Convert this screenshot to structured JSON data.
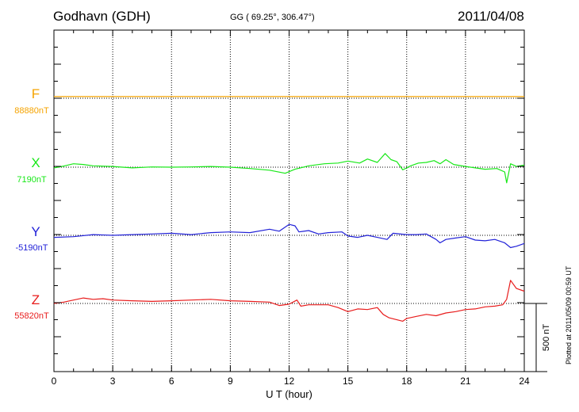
{
  "header": {
    "station": "Godhavn (GDH)",
    "coords": "GG ( 69.25°, 306.47°)",
    "date": "2011/04/08",
    "plotted": "Plotted at 2011/05/09 00:59 UT"
  },
  "chart_data": {
    "type": "line",
    "title": "Godhavn (GDH) 2011/04/08",
    "xlabel": "U T (hour)",
    "xlim": [
      0,
      24
    ],
    "xticks": [
      0,
      3,
      6,
      9,
      12,
      15,
      18,
      21,
      24
    ],
    "xtick_labels": [
      "0",
      "3",
      "6",
      "9",
      "12",
      "15",
      "18",
      "21",
      "24"
    ],
    "grid": true,
    "scale_bar": {
      "label": "500 nT",
      "value_nT": 500
    },
    "series": [
      {
        "name": "F",
        "baseline_label": "88880nT",
        "baseline_nT": 88880,
        "color": "#f5a300",
        "points": [
          [
            0,
            12
          ],
          [
            6,
            12
          ],
          [
            12,
            12
          ],
          [
            18,
            12
          ],
          [
            24,
            12
          ]
        ]
      },
      {
        "name": "X",
        "baseline_label": "7190nT",
        "baseline_nT": 7190,
        "color": "#18e818",
        "points": [
          [
            0,
            -5
          ],
          [
            0.5,
            8
          ],
          [
            1,
            25
          ],
          [
            1.5,
            20
          ],
          [
            2,
            10
          ],
          [
            3,
            5
          ],
          [
            4,
            -5
          ],
          [
            5,
            2
          ],
          [
            6,
            0
          ],
          [
            7,
            2
          ],
          [
            8,
            5
          ],
          [
            9,
            0
          ],
          [
            10,
            -10
          ],
          [
            11,
            -22
          ],
          [
            11.8,
            -45
          ],
          [
            12.3,
            -15
          ],
          [
            13,
            10
          ],
          [
            13.8,
            25
          ],
          [
            14.5,
            30
          ],
          [
            15,
            45
          ],
          [
            15.6,
            30
          ],
          [
            16,
            60
          ],
          [
            16.5,
            35
          ],
          [
            16.9,
            100
          ],
          [
            17.2,
            55
          ],
          [
            17.5,
            40
          ],
          [
            17.8,
            -20
          ],
          [
            18.2,
            10
          ],
          [
            18.6,
            30
          ],
          [
            19,
            35
          ],
          [
            19.4,
            48
          ],
          [
            19.7,
            25
          ],
          [
            20,
            55
          ],
          [
            20.4,
            20
          ],
          [
            21,
            5
          ],
          [
            21.5,
            -5
          ],
          [
            22,
            -15
          ],
          [
            22.6,
            -10
          ],
          [
            23.0,
            -35
          ],
          [
            23.1,
            -115
          ],
          [
            23.3,
            25
          ],
          [
            23.6,
            5
          ],
          [
            24,
            15
          ]
        ]
      },
      {
        "name": "Y",
        "baseline_label": "-5190nT",
        "baseline_nT": -5190,
        "color": "#2222d8",
        "points": [
          [
            0,
            -15
          ],
          [
            1,
            -10
          ],
          [
            2,
            5
          ],
          [
            3,
            0
          ],
          [
            4,
            5
          ],
          [
            5,
            10
          ],
          [
            6,
            15
          ],
          [
            7,
            5
          ],
          [
            8,
            20
          ],
          [
            9,
            25
          ],
          [
            10,
            20
          ],
          [
            11,
            45
          ],
          [
            11.5,
            30
          ],
          [
            12,
            80
          ],
          [
            12.3,
            70
          ],
          [
            12.5,
            25
          ],
          [
            13,
            35
          ],
          [
            13.5,
            10
          ],
          [
            14,
            20
          ],
          [
            14.7,
            25
          ],
          [
            15,
            -5
          ],
          [
            15.5,
            -15
          ],
          [
            16,
            0
          ],
          [
            16.5,
            -15
          ],
          [
            17,
            -30
          ],
          [
            17.3,
            15
          ],
          [
            18,
            5
          ],
          [
            18.5,
            5
          ],
          [
            19,
            10
          ],
          [
            19.5,
            -30
          ],
          [
            19.7,
            -55
          ],
          [
            20,
            -30
          ],
          [
            20.5,
            -20
          ],
          [
            21,
            -10
          ],
          [
            21.5,
            -35
          ],
          [
            22,
            -40
          ],
          [
            22.5,
            -30
          ],
          [
            23,
            -55
          ],
          [
            23.3,
            -90
          ],
          [
            23.6,
            -80
          ],
          [
            24,
            -60
          ]
        ]
      },
      {
        "name": "Z",
        "baseline_label": "55820nT",
        "baseline_nT": 55820,
        "color": "#e81c1c",
        "points": [
          [
            0,
            0
          ],
          [
            0.5,
            10
          ],
          [
            1,
            25
          ],
          [
            1.5,
            40
          ],
          [
            2,
            30
          ],
          [
            2.5,
            35
          ],
          [
            3,
            25
          ],
          [
            4,
            20
          ],
          [
            5,
            15
          ],
          [
            6,
            20
          ],
          [
            7,
            25
          ],
          [
            8,
            30
          ],
          [
            9,
            20
          ],
          [
            10,
            15
          ],
          [
            11,
            10
          ],
          [
            11.5,
            -15
          ],
          [
            12,
            -5
          ],
          [
            12.4,
            25
          ],
          [
            12.6,
            -20
          ],
          [
            13,
            -10
          ],
          [
            14,
            -10
          ],
          [
            14.5,
            -30
          ],
          [
            15,
            -60
          ],
          [
            15.5,
            -40
          ],
          [
            16,
            -45
          ],
          [
            16.5,
            -30
          ],
          [
            16.8,
            -80
          ],
          [
            17.1,
            -105
          ],
          [
            17.5,
            -120
          ],
          [
            17.8,
            -130
          ],
          [
            18,
            -110
          ],
          [
            18.5,
            -95
          ],
          [
            19,
            -80
          ],
          [
            19.5,
            -90
          ],
          [
            20,
            -70
          ],
          [
            20.5,
            -60
          ],
          [
            21,
            -45
          ],
          [
            21.5,
            -40
          ],
          [
            22,
            -25
          ],
          [
            22.5,
            -20
          ],
          [
            22.9,
            -10
          ],
          [
            23.1,
            30
          ],
          [
            23.3,
            170
          ],
          [
            23.6,
            110
          ],
          [
            24,
            90
          ]
        ]
      }
    ]
  }
}
